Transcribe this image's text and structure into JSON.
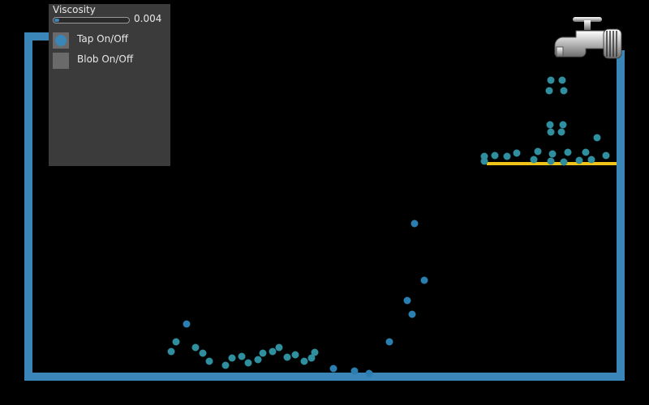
{
  "panel": {
    "viscosity_label": "Viscosity",
    "viscosity_value": "0.004",
    "viscosity_fraction": 0.04,
    "tap_label": "Tap On/Off",
    "tap_on": true,
    "blob_label": "Blob On/Off",
    "blob_on": false
  },
  "colors": {
    "container": "#3a86b8",
    "shelf": "#f0c419",
    "particle_light": "#2f8f9f",
    "particle_dark": "#2a7fb0",
    "panel_bg": "#3b3b3b"
  },
  "icons": [
    "faucet-icon"
  ]
}
